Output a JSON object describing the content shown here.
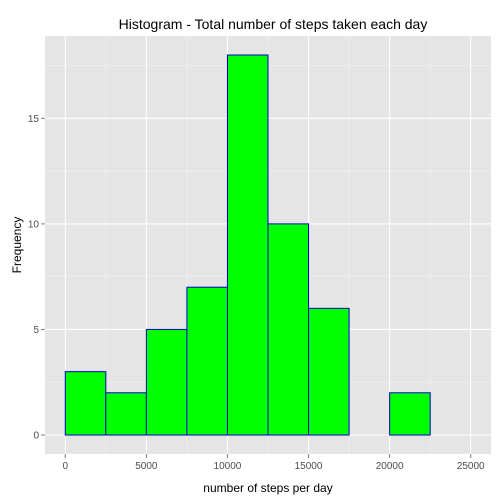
{
  "chart_data": {
    "type": "bar",
    "title": "Histogram - Total number of steps taken each day",
    "xlabel": "number of steps per day",
    "ylabel": "Frequency",
    "bin_width": 2500,
    "bins": [
      {
        "start": 0,
        "end": 2500,
        "count": 3
      },
      {
        "start": 2500,
        "end": 5000,
        "count": 2
      },
      {
        "start": 5000,
        "end": 7500,
        "count": 5
      },
      {
        "start": 7500,
        "end": 10000,
        "count": 7
      },
      {
        "start": 10000,
        "end": 12500,
        "count": 18
      },
      {
        "start": 12500,
        "end": 15000,
        "count": 10
      },
      {
        "start": 15000,
        "end": 17500,
        "count": 6
      },
      {
        "start": 17500,
        "end": 20000,
        "count": 0
      },
      {
        "start": 20000,
        "end": 22500,
        "count": 2
      },
      {
        "start": 22500,
        "end": 25000,
        "count": 0
      }
    ],
    "xlim": [
      -1250,
      26250
    ],
    "ylim": [
      -0.9,
      18.9
    ],
    "x_ticks": [
      0,
      5000,
      10000,
      15000,
      20000,
      25000
    ],
    "x_tick_labels": [
      "0",
      "5000",
      "10000",
      "15000",
      "20000",
      "25000"
    ],
    "y_ticks": [
      0,
      5,
      10,
      15
    ],
    "y_tick_labels": [
      "0",
      "5",
      "10",
      "15"
    ],
    "grid": true,
    "colors": {
      "panel_background": "#e5e5e5",
      "grid_major": "#ffffff",
      "grid_minor": "#f2f2f2",
      "bar_fill": "#00ff00",
      "bar_outline": "#0000cd"
    }
  }
}
